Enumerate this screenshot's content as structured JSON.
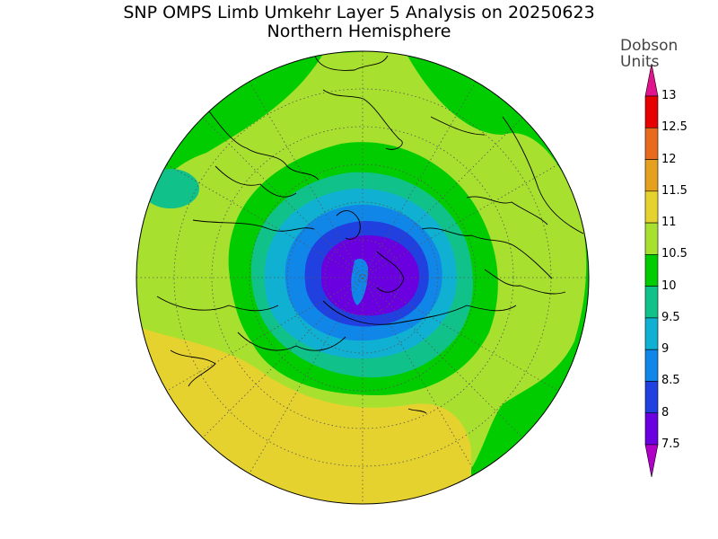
{
  "title": "SNP OMPS Limb Umkehr Layer 5 Analysis on 20250623",
  "subtitle": "Northern Hemisphere",
  "colorbar": {
    "unit_line1": "Dobson",
    "unit_line2": "Units",
    "labels": [
      "13",
      "12.5",
      "12",
      "11.5",
      "11",
      "10.5",
      "10",
      "9.5",
      "9",
      "8.5",
      "8",
      "7.5"
    ],
    "colors": [
      "#e0148c",
      "#e60000",
      "#e86a1e",
      "#e6a020",
      "#e6d22e",
      "#a8e030",
      "#00cc00",
      "#10c28a",
      "#10b0d2",
      "#1086e8",
      "#2040e0",
      "#6a00e0",
      "#b000c8"
    ]
  },
  "map": {
    "projection": "north-polar-stereographic",
    "field": "ozone layer 5 column",
    "region_colors": {
      "outer_ring": "#00cc00",
      "mid_lat": "#a8e030",
      "low_lat_band": "#e6d22e",
      "ring_95": "#10c28a",
      "ring_9": "#10b0d2",
      "ring_85": "#1086e8",
      "ring_8": "#2040e0",
      "core": "#6a00e0"
    }
  }
}
